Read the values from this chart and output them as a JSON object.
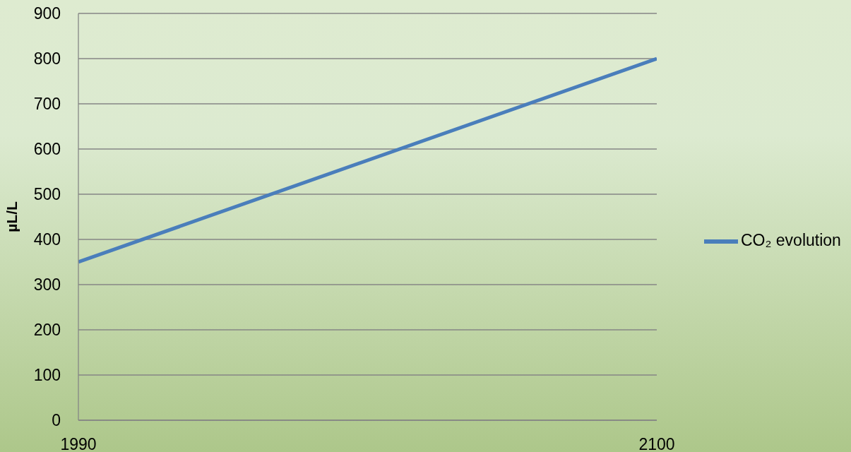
{
  "chart_data": {
    "type": "line",
    "ylabel": "µL/L",
    "x": [
      1990,
      2100
    ],
    "series": [
      {
        "name": "CO₂ evolution",
        "color": "#4a7ebb",
        "values": [
          350,
          800
        ]
      }
    ],
    "xlim": [
      1990,
      2100
    ],
    "xticks": [
      1990,
      2100
    ],
    "ylim": [
      0,
      900
    ],
    "yticks": [
      0,
      100,
      200,
      300,
      400,
      500,
      600,
      700,
      800,
      900
    ],
    "grid": "y",
    "legend": "right"
  }
}
